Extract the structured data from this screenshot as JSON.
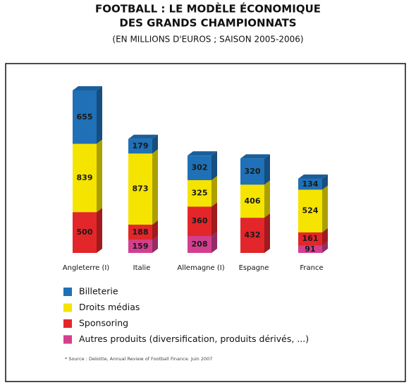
{
  "chart_data": {
    "type": "bar",
    "stacked": true,
    "title": [
      "FOOTBALL : LE MODÈLE ÉCONOMIQUE",
      "DES GRANDS CHAMPIONNATS"
    ],
    "subtitle": "(EN MILLIONS D'EUROS ; SAISON 2005-2006)",
    "categories": [
      "Angleterre (I)",
      "Italie",
      "Allemagne (I)",
      "Espagne",
      "France"
    ],
    "series": [
      {
        "name": "Billeterie",
        "color": "#1f70b6",
        "values": [
          655,
          179,
          302,
          320,
          134
        ]
      },
      {
        "name": "Droits médias",
        "color": "#f5e400",
        "values": [
          839,
          873,
          325,
          406,
          524
        ]
      },
      {
        "name": "Sponsoring",
        "color": "#e3262a",
        "values": [
          500,
          188,
          360,
          432,
          161
        ]
      },
      {
        "name": "Autres produits (diversification, produits dérivés, ...)",
        "color": "#d33f8f",
        "values": [
          null,
          159,
          208,
          null,
          91
        ]
      }
    ],
    "source": "* Source : Deloitte, Annual Review of Football Finance. Juin 2007"
  }
}
